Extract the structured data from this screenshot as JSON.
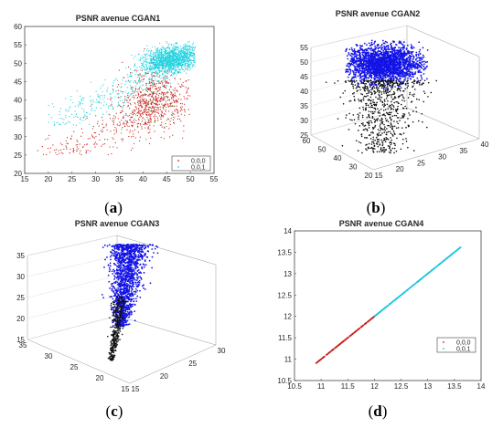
{
  "chart_data": [
    {
      "id": "a",
      "type": "scatter",
      "title": "PSNR avenue CGAN1",
      "panel_label": "a",
      "xlim": [
        15,
        55
      ],
      "ylim": [
        20,
        60
      ],
      "xticks": [
        "15",
        "20",
        "25",
        "30",
        "35",
        "40",
        "45",
        "50",
        "55"
      ],
      "yticks": [
        "20",
        "25",
        "30",
        "35",
        "40",
        "45",
        "50",
        "55",
        "60"
      ],
      "legend": {
        "position": "bottom-right",
        "entries": [
          "0,0,0",
          "0,0,1"
        ]
      },
      "series": [
        {
          "name": "0,0,0",
          "color": "#cc1f1f",
          "x_range": [
            17,
            50
          ],
          "y_range": [
            25,
            54
          ],
          "center": [
            42,
            40
          ]
        },
        {
          "name": "0,0,1",
          "color": "#22d3e0",
          "x_range": [
            20,
            51
          ],
          "y_range": [
            33,
            56
          ],
          "center": [
            45,
            51
          ]
        }
      ]
    },
    {
      "id": "b",
      "type": "scatter",
      "title": "PSNR avenue CGAN2",
      "panel_label": "b",
      "zticks": [
        "25",
        "30",
        "35",
        "40",
        "45",
        "50",
        "55"
      ],
      "xticks_left": [
        "20",
        "30",
        "40",
        "50",
        "60"
      ],
      "xticks_right": [
        "15",
        "20",
        "25",
        "30",
        "35",
        "40"
      ],
      "series": [
        {
          "color": "#1414e6",
          "role": "top cluster"
        },
        {
          "color": "#111111",
          "role": "lower tail"
        }
      ]
    },
    {
      "id": "c",
      "type": "scatter",
      "title": "PSNR avenue CGAN3",
      "panel_label": "c",
      "zticks": [
        "15",
        "20",
        "25",
        "30",
        "35"
      ],
      "xticks_left": [
        "15",
        "20",
        "25",
        "30",
        "35"
      ],
      "xticks_right": [
        "15",
        "20",
        "25",
        "30"
      ],
      "series": [
        {
          "color": "#1414e6",
          "role": "top cluster"
        },
        {
          "color": "#111111",
          "role": "lower tail"
        }
      ]
    },
    {
      "id": "d",
      "type": "scatter",
      "title": "PSNR avenue CGAN4",
      "panel_label": "d",
      "xlim": [
        10.5,
        14
      ],
      "ylim": [
        10.5,
        14
      ],
      "xticks": [
        "10.5",
        "11",
        "11.5",
        "12",
        "12.5",
        "13",
        "13.5",
        "14"
      ],
      "yticks": [
        "10.5",
        "11",
        "11.5",
        "12",
        "12.5",
        "13",
        "13.5",
        "14"
      ],
      "legend": {
        "position": "bottom-right",
        "entries": [
          "0,0,0",
          "0,0,1"
        ]
      },
      "series": [
        {
          "name": "0,0,0",
          "color": "#cc1f1f",
          "x_range": [
            10.9,
            12.1
          ]
        },
        {
          "name": "0,0,1",
          "color": "#22c5e0",
          "x_range": [
            12.0,
            13.62
          ]
        }
      ]
    }
  ]
}
